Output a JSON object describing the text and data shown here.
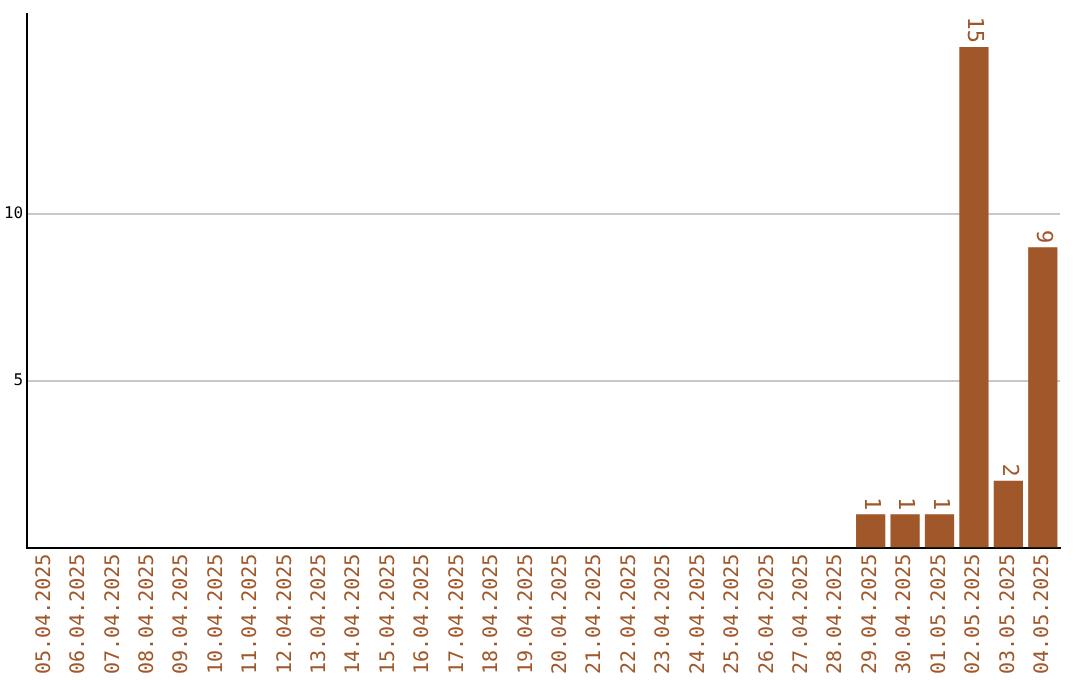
{
  "chart_data": {
    "type": "bar",
    "categories": [
      "05.04.2025",
      "06.04.2025",
      "07.04.2025",
      "08.04.2025",
      "09.04.2025",
      "10.04.2025",
      "11.04.2025",
      "12.04.2025",
      "13.04.2025",
      "14.04.2025",
      "15.04.2025",
      "16.04.2025",
      "17.04.2025",
      "18.04.2025",
      "19.04.2025",
      "20.04.2025",
      "21.04.2025",
      "22.04.2025",
      "23.04.2025",
      "24.04.2025",
      "25.04.2025",
      "26.04.2025",
      "27.04.2025",
      "28.04.2025",
      "29.04.2025",
      "30.04.2025",
      "01.05.2025",
      "02.05.2025",
      "03.05.2025",
      "04.05.2025"
    ],
    "values": [
      0,
      0,
      0,
      0,
      0,
      0,
      0,
      0,
      0,
      0,
      0,
      0,
      0,
      0,
      0,
      0,
      0,
      0,
      0,
      0,
      0,
      0,
      0,
      0,
      1,
      1,
      1,
      15,
      2,
      9
    ],
    "value_labels": [
      null,
      null,
      null,
      null,
      null,
      null,
      null,
      null,
      null,
      null,
      null,
      null,
      null,
      null,
      null,
      null,
      null,
      null,
      null,
      null,
      null,
      null,
      null,
      null,
      "1",
      "1",
      "1",
      "15",
      "2",
      "9"
    ],
    "color": "#a0572a",
    "ylim": [
      0,
      16
    ],
    "yticks": [
      5,
      10
    ],
    "grid": "y"
  }
}
